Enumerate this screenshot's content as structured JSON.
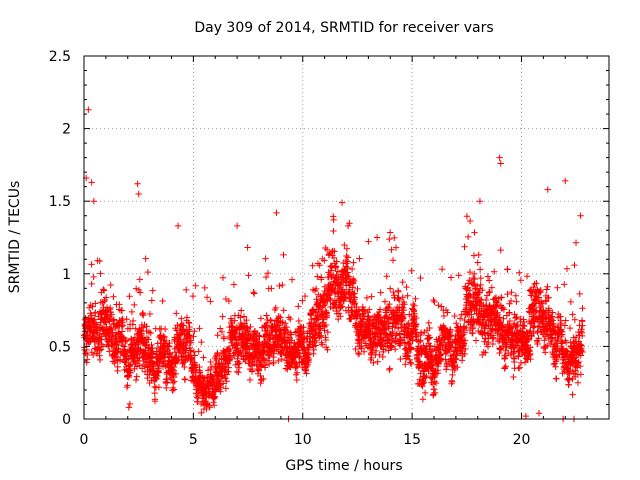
{
  "chart_data": {
    "type": "scatter",
    "title": "Day 309 of 2014, SRMTID for receiver vars",
    "xlabel": "GPS time / hours",
    "ylabel": "SRMTID / TECUs",
    "xlim": [
      0,
      24
    ],
    "ylim": [
      0,
      2.5
    ],
    "xticks": [
      "0",
      "5",
      "10",
      "15",
      "20"
    ],
    "yticks": [
      "0",
      "0.5",
      "1",
      "1.5",
      "2",
      "2.5"
    ],
    "grid": true,
    "marker": "+",
    "series_color": "#ff0000",
    "series": [
      {
        "name": "SRMTID",
        "trend": [
          [
            0.0,
            0.55
          ],
          [
            0.5,
            0.62
          ],
          [
            1.0,
            0.68
          ],
          [
            1.5,
            0.6
          ],
          [
            2.0,
            0.42
          ],
          [
            2.5,
            0.55
          ],
          [
            3.0,
            0.45
          ],
          [
            3.5,
            0.38
          ],
          [
            4.0,
            0.45
          ],
          [
            4.5,
            0.52
          ],
          [
            5.0,
            0.33
          ],
          [
            5.5,
            0.3
          ],
          [
            6.0,
            0.3
          ],
          [
            6.5,
            0.4
          ],
          [
            7.0,
            0.48
          ],
          [
            7.5,
            0.5
          ],
          [
            8.0,
            0.52
          ],
          [
            8.5,
            0.55
          ],
          [
            9.0,
            0.6
          ],
          [
            9.5,
            0.5
          ],
          [
            10.0,
            0.5
          ],
          [
            10.5,
            0.62
          ],
          [
            11.0,
            0.78
          ],
          [
            11.5,
            0.92
          ],
          [
            12.0,
            0.9
          ],
          [
            12.5,
            0.62
          ],
          [
            13.0,
            0.55
          ],
          [
            13.5,
            0.65
          ],
          [
            14.0,
            0.72
          ],
          [
            14.5,
            0.6
          ],
          [
            15.0,
            0.55
          ],
          [
            15.5,
            0.5
          ],
          [
            16.0,
            0.48
          ],
          [
            16.5,
            0.45
          ],
          [
            17.0,
            0.5
          ],
          [
            17.5,
            0.7
          ],
          [
            18.0,
            0.8
          ],
          [
            18.5,
            0.7
          ],
          [
            19.0,
            0.6
          ],
          [
            19.5,
            0.45
          ],
          [
            20.0,
            0.55
          ],
          [
            20.5,
            0.72
          ],
          [
            21.0,
            0.8
          ],
          [
            21.5,
            0.5
          ],
          [
            22.0,
            0.4
          ],
          [
            22.5,
            0.55
          ],
          [
            22.8,
            0.6
          ]
        ],
        "outliers": [
          [
            0.2,
            2.13
          ],
          [
            0.1,
            1.66
          ],
          [
            0.35,
            1.63
          ],
          [
            0.45,
            1.5
          ],
          [
            2.45,
            1.62
          ],
          [
            2.5,
            1.55
          ],
          [
            4.3,
            1.33
          ],
          [
            7.0,
            1.33
          ],
          [
            8.8,
            1.42
          ],
          [
            11.8,
            1.49
          ],
          [
            13.4,
            1.25
          ],
          [
            18.1,
            1.5
          ],
          [
            19.0,
            1.8
          ],
          [
            19.05,
            1.76
          ],
          [
            21.2,
            1.58
          ],
          [
            22.0,
            1.64
          ],
          [
            22.7,
            1.4
          ],
          [
            9.35,
            0.0
          ],
          [
            21.9,
            0.0
          ],
          [
            22.4,
            0.0
          ],
          [
            2.05,
            0.08
          ],
          [
            20.2,
            0.02
          ],
          [
            20.8,
            0.04
          ]
        ]
      }
    ]
  }
}
